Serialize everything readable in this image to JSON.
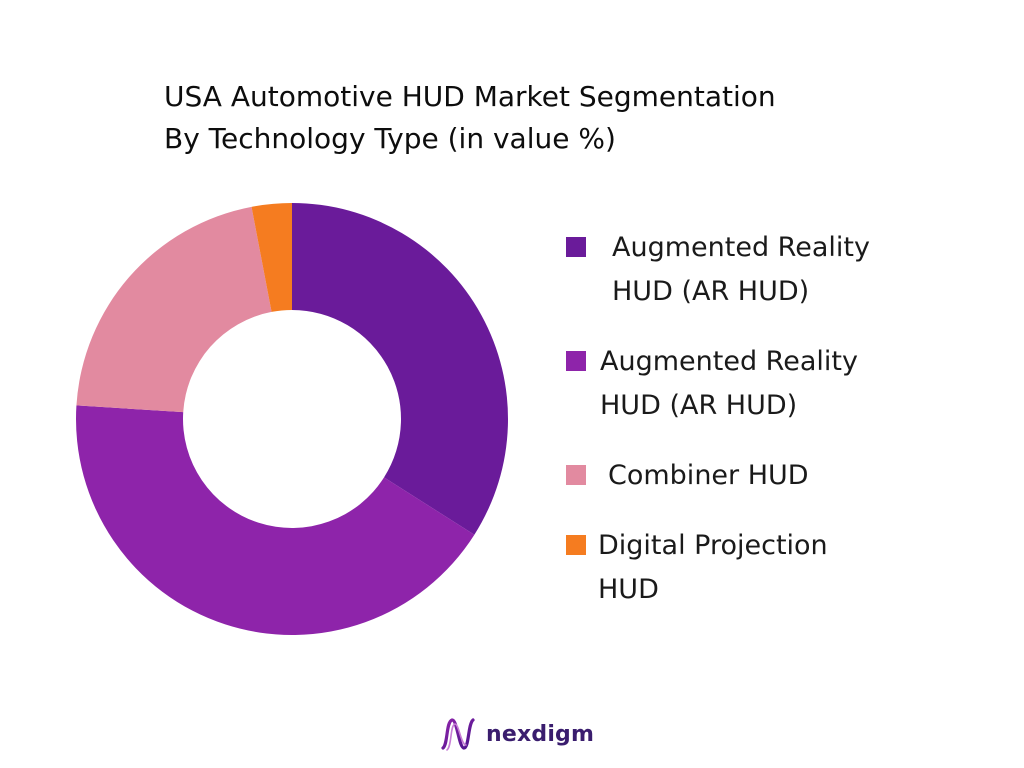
{
  "chart_data": {
    "type": "pie",
    "donut": true,
    "title_lines": [
      "USA Automotive HUD Market Segmentation",
      "By Technology Type (in value %)"
    ],
    "legend_position": "right",
    "series": [
      {
        "name_lines": [
          "Augmented Reality",
          "HUD (AR HUD)"
        ],
        "value": 34,
        "color": "#6a1b9a"
      },
      {
        "name_lines": [
          "Augmented Reality",
          "HUD (AR HUD)"
        ],
        "value": 42,
        "color": "#8e24aa"
      },
      {
        "name_lines": [
          "Combiner HUD"
        ],
        "value": 21,
        "color": "#e28aa0"
      },
      {
        "name_lines": [
          "Digital Projection",
          "HUD"
        ],
        "value": 3,
        "color": "#f57c20"
      }
    ]
  },
  "brand": {
    "name": "nexdigm",
    "logo_icon": "nexdigm-wave-icon",
    "color": "#3a1d6e"
  }
}
